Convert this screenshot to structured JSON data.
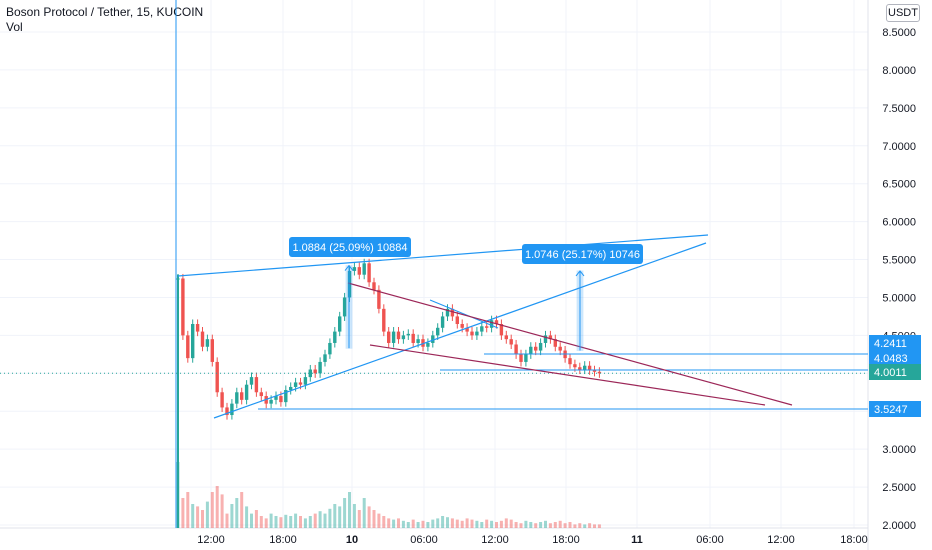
{
  "header": {
    "symbol_title": "Boson Protocol / Tether, 15, KUCOIN",
    "volume_label": "Vol",
    "currency_button": "USDT"
  },
  "colors": {
    "up": "#26a69a",
    "down": "#ef5350",
    "trend_blue": "#2196f3",
    "wedge": "#9c2758",
    "grid": "#f0f3fa",
    "axis_text": "#131722"
  },
  "chart_data": {
    "type": "candlestick",
    "title": "Boson Protocol / Tether, 15, KUCOIN",
    "y_axis": {
      "scale": "linear",
      "range": [
        2.0,
        8.65
      ],
      "ticks": [
        "8.5000",
        "8.0000",
        "7.5000",
        "7.0000",
        "6.5000",
        "6.0000",
        "5.5000",
        "5.0000",
        "4.5000",
        "4.0000",
        "3.5000",
        "3.0000",
        "2.5000",
        "2.0000"
      ]
    },
    "x_axis": {
      "tick_labels": [
        "12:00",
        "18:00",
        "10",
        "12:00",
        "06:00",
        "12:00",
        "18:00",
        "11",
        "06:00",
        "12:00",
        "18:00"
      ],
      "bold_labels": [
        "10",
        "11"
      ]
    },
    "grid": true,
    "price_labels": [
      {
        "value": "4.2411",
        "style": "blue"
      },
      {
        "value": "4.0483",
        "style": "blue"
      },
      {
        "value": "4.0011",
        "style": "green"
      },
      {
        "value": "3.5247",
        "style": "blue"
      }
    ],
    "measure_annotations": [
      {
        "text": "1.0884 (25.09%) 10884",
        "from": 4.33,
        "to": 5.42
      },
      {
        "text": "1.0746 (25.17%) 10746",
        "from": 4.3,
        "to": 5.35
      }
    ],
    "candles_close": [
      5.25,
      4.5,
      4.2,
      4.65,
      4.55,
      4.35,
      4.45,
      4.15,
      3.75,
      3.55,
      3.45,
      3.6,
      3.75,
      3.65,
      3.85,
      3.95,
      3.75,
      3.7,
      3.6,
      3.65,
      3.7,
      3.62,
      3.78,
      3.82,
      3.88,
      3.85,
      3.95,
      4.05,
      4.0,
      4.15,
      4.25,
      4.4,
      4.55,
      4.75,
      5.0,
      5.35,
      5.4,
      5.3,
      5.45,
      5.2,
      5.1,
      4.85,
      4.55,
      4.4,
      4.55,
      4.45,
      4.5,
      4.52,
      4.4,
      4.45,
      4.35,
      4.4,
      4.5,
      4.6,
      4.75,
      4.85,
      4.75,
      4.65,
      4.6,
      4.55,
      4.5,
      4.55,
      4.62,
      4.6,
      4.7,
      4.65,
      4.5,
      4.45,
      4.38,
      4.25,
      4.15,
      4.25,
      4.35,
      4.3,
      4.4,
      4.5,
      4.45,
      4.35,
      4.3,
      4.2,
      4.12,
      4.08,
      4.05,
      4.1,
      4.04,
      4.02,
      4.0
    ],
    "volumes": [
      0.55,
      0.25,
      0.3,
      0.2,
      0.18,
      0.15,
      0.22,
      0.3,
      0.35,
      0.28,
      0.12,
      0.2,
      0.25,
      0.3,
      0.18,
      0.12,
      0.15,
      0.1,
      0.08,
      0.12,
      0.1,
      0.09,
      0.11,
      0.1,
      0.12,
      0.1,
      0.08,
      0.1,
      0.12,
      0.14,
      0.12,
      0.16,
      0.2,
      0.18,
      0.25,
      0.3,
      0.2,
      0.15,
      0.25,
      0.18,
      0.15,
      0.12,
      0.1,
      0.08,
      0.07,
      0.08,
      0.06,
      0.05,
      0.07,
      0.05,
      0.06,
      0.05,
      0.07,
      0.08,
      0.1,
      0.09,
      0.08,
      0.07,
      0.06,
      0.08,
      0.07,
      0.06,
      0.05,
      0.07,
      0.06,
      0.05,
      0.06,
      0.08,
      0.07,
      0.05,
      0.04,
      0.06,
      0.05,
      0.04,
      0.05,
      0.06,
      0.04,
      0.05,
      0.06,
      0.04,
      0.05,
      0.03,
      0.04,
      0.03,
      0.04,
      0.03,
      0.03
    ]
  }
}
